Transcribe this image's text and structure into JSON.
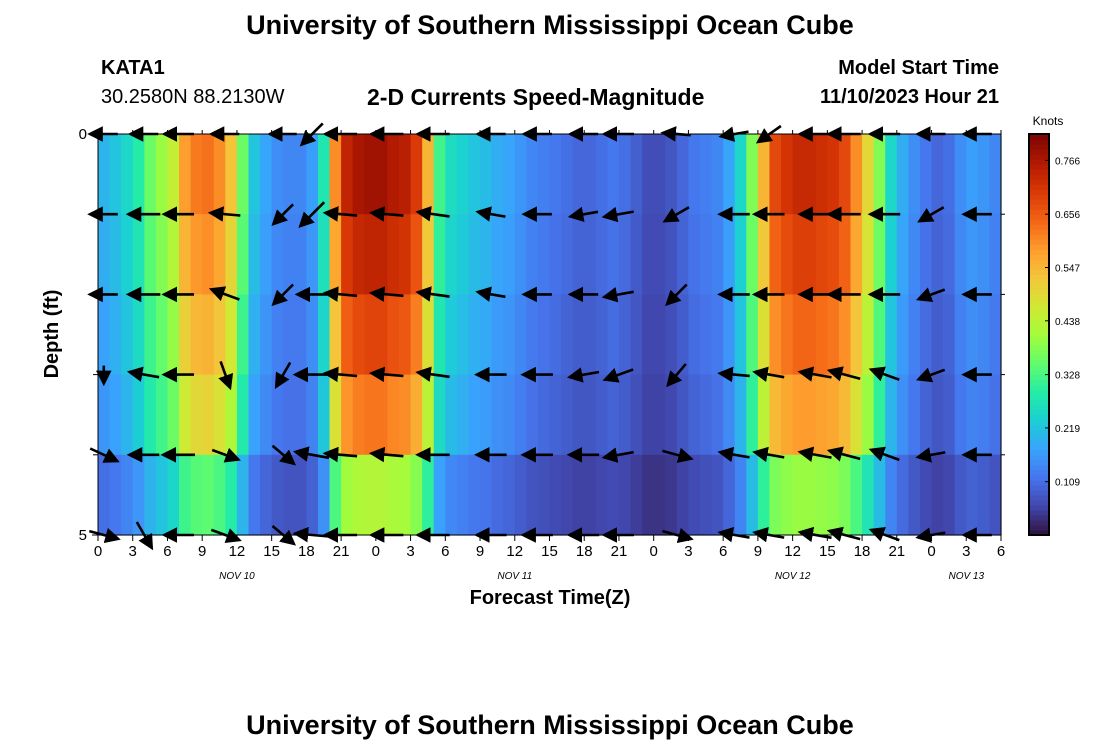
{
  "page": {
    "title_top": "University of Southern Mississippi Ocean Cube",
    "title_bottom": "University of Southern Mississippi Ocean Cube",
    "station_id": "KATA1",
    "coordinates": "30.2580N  88.2130W",
    "subtitle": "2-D Currents Speed-Magnitude",
    "model_start_label": "Model Start Time",
    "model_start_value": "11/10/2023 Hour 21"
  },
  "chart_data": {
    "type": "heatmap",
    "title": "2-D Currents Speed-Magnitude",
    "xlabel": "Forecast Time(Z)",
    "ylabel": "Depth (ft)",
    "x_tick_labels": [
      "0",
      "3",
      "6",
      "9",
      "12",
      "15",
      "18",
      "21",
      "0",
      "3",
      "6",
      "9",
      "12",
      "15",
      "18",
      "21",
      "0",
      "3",
      "6",
      "9",
      "12",
      "15",
      "18",
      "21",
      "0",
      "3",
      "6"
    ],
    "x_range_hours": [
      0,
      78
    ],
    "x_tick_step_hours": 3,
    "date_labels": [
      {
        "text": "NOV 10",
        "hour": 12
      },
      {
        "text": "NOV 11",
        "hour": 36
      },
      {
        "text": "NOV 12",
        "hour": 60
      },
      {
        "text": "NOV 13",
        "hour": 75
      }
    ],
    "y_tick_labels": [
      "0",
      "5"
    ],
    "y_range_ft": [
      0,
      5
    ],
    "y_minor_ticks_ft": [
      1,
      2,
      3,
      4
    ],
    "colorbar": {
      "unit": "Knots",
      "ticks": [
        0.109,
        0.219,
        0.328,
        0.438,
        0.547,
        0.656,
        0.766
      ],
      "tick_labels": [
        "0.109",
        "0.219",
        "0.328",
        "0.438",
        "0.547",
        "0.656",
        "0.766"
      ],
      "range": [
        0.0,
        0.82
      ],
      "colormap": [
        "#30123b",
        "#4145ab",
        "#4675ed",
        "#39a2fc",
        "#1bcfd4",
        "#24eca6",
        "#61fc6c",
        "#a4fc3b",
        "#d1e834",
        "#f3c63a",
        "#fe9b2d",
        "#f36315",
        "#d93806",
        "#b11901",
        "#7a0403"
      ]
    },
    "time_hours": [
      0,
      1,
      2,
      3,
      4,
      5,
      6,
      7,
      8,
      9,
      10,
      11,
      12,
      13,
      14,
      15,
      16,
      17,
      18,
      19,
      20,
      21,
      22,
      23,
      24,
      25,
      26,
      27,
      28,
      29,
      30,
      31,
      32,
      33,
      34,
      35,
      36,
      37,
      38,
      39,
      40,
      41,
      42,
      43,
      44,
      45,
      46,
      47,
      48,
      49,
      50,
      51,
      52,
      53,
      54,
      55,
      56,
      57,
      58,
      59,
      60,
      61,
      62,
      63,
      64,
      65,
      66,
      67,
      68,
      69,
      70,
      71,
      72,
      73,
      74,
      75,
      76,
      77
    ],
    "depth_layers_ft": [
      0.5,
      1.5,
      2.5,
      3.5,
      4.5
    ],
    "speed_profile_knots": [
      0.2,
      0.22,
      0.25,
      0.29,
      0.36,
      0.4,
      0.45,
      0.58,
      0.62,
      0.63,
      0.6,
      0.53,
      0.36,
      0.22,
      0.18,
      0.15,
      0.14,
      0.14,
      0.17,
      0.28,
      0.6,
      0.74,
      0.77,
      0.78,
      0.78,
      0.76,
      0.75,
      0.7,
      0.55,
      0.32,
      0.26,
      0.24,
      0.22,
      0.21,
      0.19,
      0.18,
      0.16,
      0.14,
      0.13,
      0.12,
      0.11,
      0.1,
      0.1,
      0.11,
      0.12,
      0.11,
      0.09,
      0.07,
      0.07,
      0.08,
      0.1,
      0.12,
      0.13,
      0.14,
      0.18,
      0.25,
      0.38,
      0.55,
      0.68,
      0.71,
      0.73,
      0.73,
      0.72,
      0.71,
      0.68,
      0.6,
      0.5,
      0.38,
      0.25,
      0.19,
      0.15,
      0.12,
      0.1,
      0.11,
      0.15,
      0.17,
      0.16,
      0.14
    ],
    "depth_factor": [
      1.0,
      0.95,
      0.88,
      0.8,
      0.55
    ],
    "vector_times_hours": [
      0.5,
      4,
      7,
      11,
      16,
      18.5,
      21,
      25,
      29,
      34,
      38,
      42,
      45,
      50,
      55,
      58,
      62,
      64.5,
      68,
      72,
      76
    ],
    "vector_rows_ft": [
      0,
      1,
      2,
      3,
      4,
      5
    ],
    "vector_angles_deg": [
      [
        180,
        180,
        180,
        180,
        180,
        225,
        180,
        180,
        180,
        180,
        180,
        180,
        180,
        175,
        190,
        215,
        180,
        180,
        180,
        180,
        180
      ],
      [
        180,
        180,
        180,
        175,
        225,
        225,
        175,
        175,
        172,
        170,
        180,
        190,
        190,
        210,
        180,
        180,
        180,
        180,
        180,
        210,
        180
      ],
      [
        180,
        180,
        180,
        160,
        225,
        180,
        175,
        175,
        172,
        170,
        180,
        180,
        190,
        225,
        180,
        180,
        180,
        180,
        180,
        200,
        180
      ],
      [
        270,
        170,
        180,
        290,
        240,
        180,
        175,
        175,
        172,
        180,
        180,
        190,
        200,
        230,
        175,
        170,
        170,
        165,
        160,
        200,
        180
      ],
      [
        335,
        180,
        180,
        340,
        320,
        170,
        175,
        175,
        180,
        180,
        180,
        180,
        190,
        345,
        170,
        170,
        170,
        165,
        160,
        190,
        180
      ],
      [
        345,
        300,
        180,
        340,
        320,
        175,
        180,
        180,
        180,
        180,
        180,
        180,
        180,
        345,
        170,
        170,
        170,
        165,
        160,
        190,
        180
      ]
    ],
    "vector_lengths_px": [
      [
        28,
        28,
        30,
        28,
        27,
        30,
        32,
        32,
        32,
        28,
        28,
        28,
        30,
        28,
        28,
        28,
        32,
        32,
        30,
        28,
        28
      ],
      [
        28,
        32,
        30,
        30,
        28,
        34,
        32,
        32,
        32,
        28,
        28,
        28,
        30,
        28,
        30,
        30,
        32,
        32,
        30,
        28,
        28
      ],
      [
        28,
        32,
        30,
        30,
        28,
        30,
        32,
        32,
        32,
        28,
        28,
        28,
        30,
        28,
        30,
        30,
        32,
        32,
        30,
        28,
        28
      ],
      [
        18,
        30,
        30,
        28,
        28,
        34,
        32,
        32,
        32,
        30,
        30,
        30,
        30,
        28,
        30,
        30,
        32,
        32,
        30,
        28,
        28
      ],
      [
        30,
        30,
        32,
        28,
        28,
        34,
        32,
        32,
        32,
        30,
        30,
        30,
        30,
        30,
        30,
        30,
        32,
        32,
        30,
        28,
        28
      ],
      [
        30,
        30,
        30,
        30,
        28,
        34,
        32,
        32,
        32,
        30,
        30,
        30,
        30,
        30,
        30,
        30,
        32,
        32,
        30,
        28,
        28
      ]
    ]
  }
}
